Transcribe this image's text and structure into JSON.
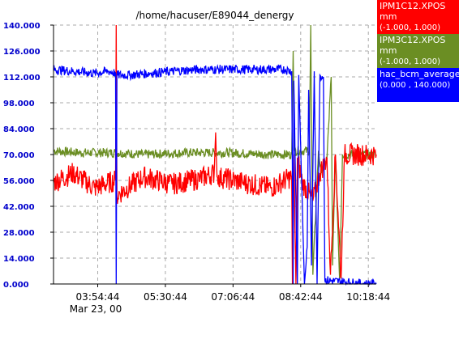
{
  "chart_data": {
    "type": "line",
    "title": "/home/hacuser/E89044_denergy",
    "x_ticks": [
      "03:54:44",
      "05:30:44",
      "07:06:44",
      "08:42:44",
      "10:18:44"
    ],
    "date_label": "Mar 23, 00",
    "y_ticks": [
      "0.000",
      "14.000",
      "28.000",
      "42.000",
      "56.000",
      "70.000",
      "84.000",
      "98.000",
      "112.000",
      "126.000",
      "140.000"
    ],
    "ylim": [
      0,
      140
    ],
    "xlim": [
      "02:52:00",
      "10:30:00"
    ],
    "grid": true,
    "series": [
      {
        "name": "hac_bcm_average",
        "unit": "",
        "range": "(0.000 , 140.000)",
        "color": "#0000ff",
        "points": [
          [
            "02:52",
            116
          ],
          [
            "03:20",
            115
          ],
          [
            "03:50",
            114
          ],
          [
            "04:10",
            115
          ],
          [
            "04:20",
            114
          ],
          [
            "04:21",
            0
          ],
          [
            "04:22",
            113
          ],
          [
            "04:40",
            113
          ],
          [
            "05:10",
            114
          ],
          [
            "05:40",
            115
          ],
          [
            "06:20",
            116
          ],
          [
            "07:00",
            116
          ],
          [
            "07:40",
            116
          ],
          [
            "08:20",
            116
          ],
          [
            "08:30",
            115
          ],
          [
            "08:32",
            0
          ],
          [
            "08:33",
            110
          ],
          [
            "08:38",
            0
          ],
          [
            "08:40",
            113
          ],
          [
            "08:48",
            0
          ],
          [
            "08:52",
            20
          ],
          [
            "08:54",
            105
          ],
          [
            "08:58",
            10
          ],
          [
            "09:02",
            115
          ],
          [
            "09:06",
            0
          ],
          [
            "09:10",
            113
          ],
          [
            "09:15",
            112
          ],
          [
            "09:17",
            2
          ],
          [
            "10:15",
            0
          ],
          [
            "10:30",
            0
          ]
        ]
      },
      {
        "name": "IPM1C12.XPOS",
        "unit": "mm",
        "range": "(-1.000, 1.000)",
        "color": "#ff0000",
        "points": [
          [
            "02:52",
            55
          ],
          [
            "03:20",
            60
          ],
          [
            "03:50",
            52
          ],
          [
            "04:20",
            56
          ],
          [
            "04:21",
            140
          ],
          [
            "04:22",
            48
          ],
          [
            "05:00",
            58
          ],
          [
            "05:40",
            54
          ],
          [
            "06:20",
            57
          ],
          [
            "06:40",
            60
          ],
          [
            "06:42",
            82
          ],
          [
            "06:44",
            58
          ],
          [
            "07:20",
            55
          ],
          [
            "08:00",
            52
          ],
          [
            "08:30",
            58
          ],
          [
            "08:31",
            0
          ],
          [
            "08:33",
            70
          ],
          [
            "08:36",
            0
          ],
          [
            "08:38",
            68
          ],
          [
            "08:45",
            55
          ],
          [
            "09:00",
            45
          ],
          [
            "09:10",
            60
          ],
          [
            "09:20",
            68
          ],
          [
            "09:25",
            5
          ],
          [
            "09:32",
            70
          ],
          [
            "09:40",
            3
          ],
          [
            "09:45",
            70
          ],
          [
            "10:30",
            70
          ]
        ]
      },
      {
        "name": "IPM3C12.XPOS",
        "unit": "mm",
        "range": "(-1.000, 1.000)",
        "color": "#6b8e23",
        "points": [
          [
            "02:52",
            72
          ],
          [
            "03:30",
            71
          ],
          [
            "04:20",
            71
          ],
          [
            "05:00",
            70
          ],
          [
            "06:00",
            71
          ],
          [
            "07:00",
            71
          ],
          [
            "08:00",
            70
          ],
          [
            "08:30",
            70
          ],
          [
            "08:32",
            126
          ],
          [
            "08:34",
            72
          ],
          [
            "08:55",
            72
          ],
          [
            "08:57",
            140
          ],
          [
            "09:00",
            5
          ],
          [
            "09:08",
            72
          ],
          [
            "09:12",
            60
          ],
          [
            "09:20",
            68
          ],
          [
            "09:26",
            112
          ],
          [
            "09:28",
            10
          ],
          [
            "09:32",
            70
          ],
          [
            "09:38",
            2
          ],
          [
            "09:42",
            70
          ],
          [
            "10:30",
            70
          ]
        ]
      }
    ]
  }
}
